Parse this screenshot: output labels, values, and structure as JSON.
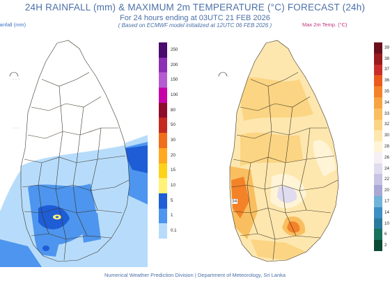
{
  "header": {
    "title": "24H RAINFALL (mm) & MAXIMUM 2m TEMPERATURE (°C) FORECAST (24h)",
    "subtitle": "For 24 hours ending at 03UTC 21 FEB 2026",
    "model_note": "( Based on ECMWF model initialized at 12UTC 06 FEB 2026 )"
  },
  "left_panel": {
    "label": "ainfall (mm)",
    "legend_ticks": [
      "250",
      "200",
      "150",
      "100",
      "80",
      "50",
      "30",
      "20",
      "15",
      "10",
      "5",
      "1",
      "0.1"
    ],
    "legend_colors": [
      "#4a0a6e",
      "#8b2fb5",
      "#b55bd1",
      "#c700a8",
      "#8e0d2b",
      "#c42a1f",
      "#f06d1c",
      "#ffa820",
      "#ffd21a",
      "#fff276",
      "#1e5dd6",
      "#4d95ee",
      "#b7dcfb"
    ]
  },
  "right_panel": {
    "label": "Max 2m Temp. (°C)",
    "legend_ticks": [
      "39",
      "38",
      "37",
      "36",
      "35",
      "34",
      "33",
      "32",
      "30",
      "28",
      "26",
      "24",
      "22",
      "20",
      "17",
      "14",
      "10",
      "6",
      "2"
    ],
    "legend_colors": [
      "#6b0f1d",
      "#991b1e",
      "#c92e2b",
      "#ea5a1e",
      "#f48228",
      "#f7a341",
      "#f9be5f",
      "#fbd583",
      "#fde7ae",
      "#fff4d6",
      "#f6f0f6",
      "#e0dcef",
      "#c7c3e2",
      "#a9a7d4",
      "#6fb3d8",
      "#3c8ec4",
      "#2b7a9e",
      "#18725c",
      "#0b4a33"
    ],
    "map_value": "34"
  },
  "footer": {
    "text": "Numerical Weather Prediction Division | Department of Meteorology, Sri Lanka"
  },
  "icons": {
    "map_outline": "sri-lanka-outline"
  }
}
